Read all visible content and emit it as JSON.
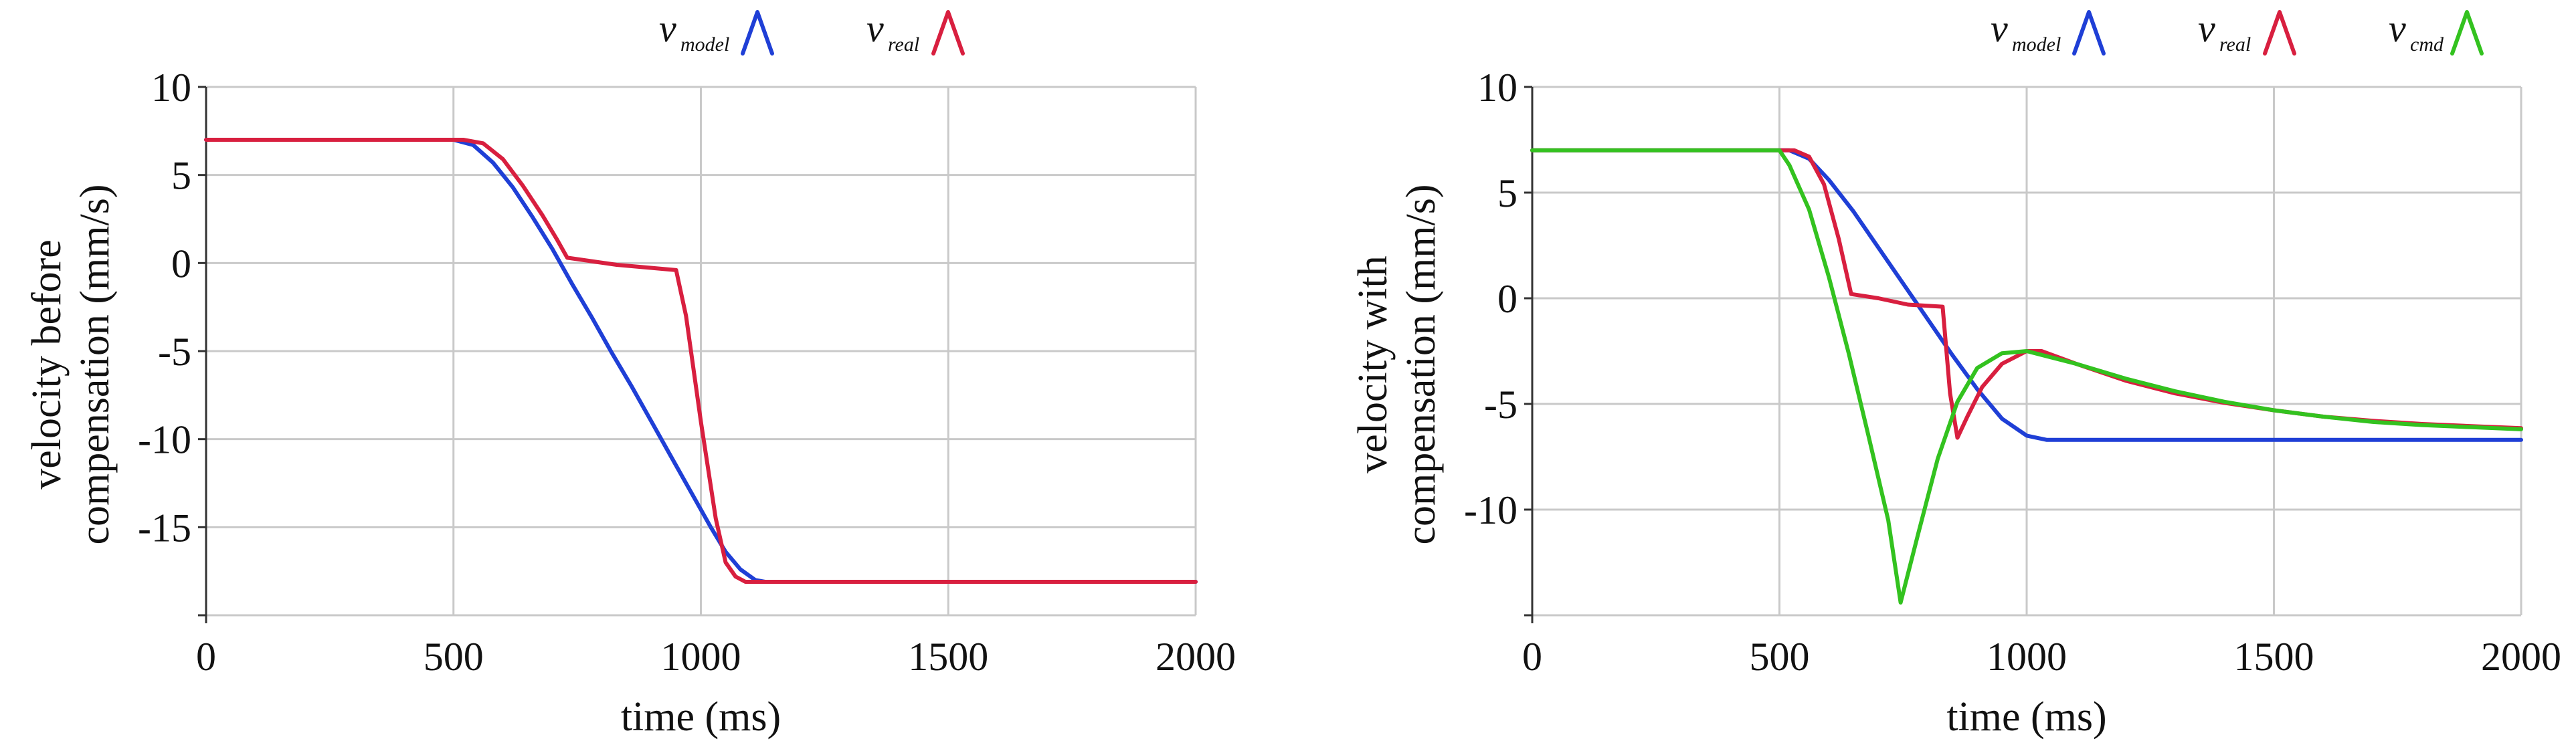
{
  "chart_data": [
    {
      "type": "line",
      "title": "",
      "xlabel": "time (ms)",
      "ylabel_lines": [
        "velocity before",
        "compensation (mm/s)"
      ],
      "xlim": [
        0,
        2000
      ],
      "ylim": [
        -20,
        10
      ],
      "x_ticks": [
        0,
        500,
        1000,
        1500,
        2000
      ],
      "y_ticks": [
        10,
        5,
        0,
        -5,
        -10,
        -15
      ],
      "x_tick_labels": [
        "0",
        "500",
        "1000",
        "1500",
        "2000"
      ],
      "y_tick_labels": [
        "10",
        "5",
        "0",
        "-5",
        "-10",
        "-15"
      ],
      "grid": true,
      "legend_position": "top-right",
      "series": [
        {
          "name_main": "v",
          "name_sub": "model",
          "color": "#1f3fd6",
          "points": [
            [
              0,
              7
            ],
            [
              500,
              7
            ],
            [
              540,
              6.7
            ],
            [
              580,
              5.7
            ],
            [
              620,
              4.3
            ],
            [
              660,
              2.6
            ],
            [
              700,
              0.8
            ],
            [
              740,
              -1.2
            ],
            [
              780,
              -3.1
            ],
            [
              820,
              -5.1
            ],
            [
              860,
              -7.0
            ],
            [
              900,
              -9.0
            ],
            [
              940,
              -11.0
            ],
            [
              980,
              -13.0
            ],
            [
              1020,
              -15.0
            ],
            [
              1050,
              -16.4
            ],
            [
              1080,
              -17.4
            ],
            [
              1110,
              -18.0
            ],
            [
              1130,
              -18.1
            ],
            [
              2000,
              -18.1
            ]
          ]
        },
        {
          "name_main": "v",
          "name_sub": "real",
          "color": "#d81f3f",
          "points": [
            [
              0,
              7
            ],
            [
              520,
              7
            ],
            [
              560,
              6.8
            ],
            [
              600,
              5.9
            ],
            [
              640,
              4.4
            ],
            [
              680,
              2.7
            ],
            [
              710,
              1.3
            ],
            [
              730,
              0.3
            ],
            [
              830,
              -0.1
            ],
            [
              950,
              -0.4
            ],
            [
              970,
              -3.0
            ],
            [
              1000,
              -9.0
            ],
            [
              1030,
              -14.5
            ],
            [
              1050,
              -17.0
            ],
            [
              1070,
              -17.8
            ],
            [
              1090,
              -18.1
            ],
            [
              2000,
              -18.1
            ]
          ]
        }
      ]
    },
    {
      "type": "line",
      "title": "",
      "xlabel": "time (ms)",
      "ylabel_lines": [
        "velocity with",
        "compensation (mm/s)"
      ],
      "xlim": [
        0,
        2000
      ],
      "ylim": [
        -15,
        10
      ],
      "x_ticks": [
        0,
        500,
        1000,
        1500,
        2000
      ],
      "y_ticks": [
        10,
        5,
        0,
        -5,
        -10
      ],
      "x_tick_labels": [
        "0",
        "500",
        "1000",
        "1500",
        "2000"
      ],
      "y_tick_labels": [
        "10",
        "5",
        "0",
        "-5",
        "-10"
      ],
      "grid": true,
      "legend_position": "top-right",
      "series": [
        {
          "name_main": "v",
          "name_sub": "model",
          "color": "#1f3fd6",
          "points": [
            [
              0,
              7
            ],
            [
              520,
              7
            ],
            [
              560,
              6.6
            ],
            [
              600,
              5.6
            ],
            [
              650,
              4.1
            ],
            [
              700,
              2.4
            ],
            [
              750,
              0.7
            ],
            [
              800,
              -1.0
            ],
            [
              850,
              -2.7
            ],
            [
              900,
              -4.3
            ],
            [
              950,
              -5.7
            ],
            [
              1000,
              -6.5
            ],
            [
              1040,
              -6.7
            ],
            [
              2000,
              -6.7
            ]
          ]
        },
        {
          "name_main": "v",
          "name_sub": "real",
          "color": "#d81f3f",
          "points": [
            [
              0,
              7
            ],
            [
              530,
              7
            ],
            [
              560,
              6.7
            ],
            [
              590,
              5.4
            ],
            [
              620,
              2.8
            ],
            [
              645,
              0.2
            ],
            [
              700,
              0.0
            ],
            [
              760,
              -0.3
            ],
            [
              830,
              -0.4
            ],
            [
              845,
              -4.5
            ],
            [
              860,
              -6.6
            ],
            [
              880,
              -5.6
            ],
            [
              910,
              -4.2
            ],
            [
              950,
              -3.1
            ],
            [
              1000,
              -2.5
            ],
            [
              1030,
              -2.5
            ],
            [
              1100,
              -3.1
            ],
            [
              1200,
              -3.9
            ],
            [
              1300,
              -4.5
            ],
            [
              1400,
              -4.95
            ],
            [
              1500,
              -5.3
            ],
            [
              1600,
              -5.6
            ],
            [
              1700,
              -5.8
            ],
            [
              1800,
              -5.95
            ],
            [
              1900,
              -6.05
            ],
            [
              2000,
              -6.15
            ]
          ]
        },
        {
          "name_main": "v",
          "name_sub": "cmd",
          "color": "#33c21f",
          "points": [
            [
              0,
              7
            ],
            [
              500,
              7
            ],
            [
              520,
              6.3
            ],
            [
              560,
              4.2
            ],
            [
              600,
              1.0
            ],
            [
              640,
              -2.6
            ],
            [
              680,
              -6.5
            ],
            [
              720,
              -10.5
            ],
            [
              745,
              -14.4
            ],
            [
              780,
              -11.2
            ],
            [
              820,
              -7.6
            ],
            [
              860,
              -4.9
            ],
            [
              900,
              -3.3
            ],
            [
              950,
              -2.6
            ],
            [
              1000,
              -2.5
            ],
            [
              1100,
              -3.1
            ],
            [
              1200,
              -3.8
            ],
            [
              1300,
              -4.4
            ],
            [
              1400,
              -4.9
            ],
            [
              1500,
              -5.3
            ],
            [
              1600,
              -5.6
            ],
            [
              1700,
              -5.85
            ],
            [
              1800,
              -6.0
            ],
            [
              1900,
              -6.1
            ],
            [
              2000,
              -6.2
            ]
          ]
        }
      ]
    }
  ]
}
